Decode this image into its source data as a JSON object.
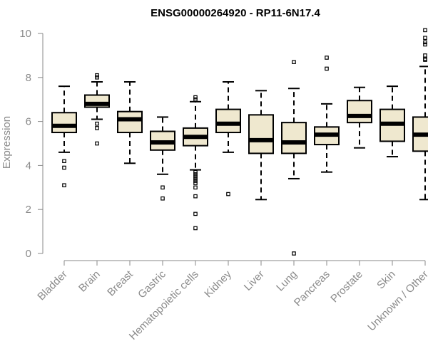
{
  "chart_data": {
    "type": "boxplot",
    "title": "ENSG00000264920 - RP11-6N17.4",
    "xlabel": "",
    "ylabel": "Expression",
    "ylim": [
      0,
      10
    ],
    "yticks": [
      0,
      2,
      4,
      6,
      8,
      10
    ],
    "box_fill": "#efe8cf",
    "axis_color": "#8a8a8a",
    "categories": [
      "Bladder",
      "Brain",
      "Breast",
      "Gastric",
      "Hematopoietic cells",
      "Kidney",
      "Liver",
      "Lung",
      "Pancreas",
      "Prostate",
      "Skin",
      "Unknown / Other"
    ],
    "boxes": [
      {
        "name": "Bladder",
        "whisker_low": 4.6,
        "q1": 5.5,
        "median": 5.8,
        "q3": 6.4,
        "whisker_high": 7.6,
        "outliers": [
          4.2,
          3.9,
          3.1
        ]
      },
      {
        "name": "Brain",
        "whisker_low": 6.1,
        "q1": 6.65,
        "median": 6.8,
        "q3": 7.2,
        "whisker_high": 7.8,
        "outliers": [
          8.1,
          8.0,
          5.9,
          5.7,
          5.0
        ]
      },
      {
        "name": "Breast",
        "whisker_low": 4.1,
        "q1": 5.5,
        "median": 6.1,
        "q3": 6.45,
        "whisker_high": 7.8,
        "outliers": []
      },
      {
        "name": "Gastric",
        "whisker_low": 3.6,
        "q1": 4.7,
        "median": 5.05,
        "q3": 5.55,
        "whisker_high": 6.2,
        "outliers": [
          3.0,
          2.5
        ]
      },
      {
        "name": "Hematopoietic cells",
        "whisker_low": 3.8,
        "q1": 4.9,
        "median": 5.3,
        "q3": 5.7,
        "whisker_high": 6.9,
        "outliers": [
          7.1,
          7.0,
          3.7,
          3.6,
          3.5,
          3.4,
          3.3,
          3.2,
          3.0,
          2.6,
          1.8,
          1.15
        ]
      },
      {
        "name": "Kidney",
        "whisker_low": 4.6,
        "q1": 5.5,
        "median": 5.9,
        "q3": 6.55,
        "whisker_high": 7.8,
        "outliers": [
          2.7
        ]
      },
      {
        "name": "Liver",
        "whisker_low": 2.45,
        "q1": 4.55,
        "median": 5.15,
        "q3": 6.3,
        "whisker_high": 7.4,
        "outliers": []
      },
      {
        "name": "Lung",
        "whisker_low": 3.4,
        "q1": 4.55,
        "median": 5.05,
        "q3": 5.95,
        "whisker_high": 7.5,
        "outliers": [
          8.7,
          0.0
        ]
      },
      {
        "name": "Pancreas",
        "whisker_low": 3.7,
        "q1": 4.95,
        "median": 5.4,
        "q3": 5.75,
        "whisker_high": 6.8,
        "outliers": [
          8.9,
          8.4
        ]
      },
      {
        "name": "Prostate",
        "whisker_low": 4.8,
        "q1": 5.95,
        "median": 6.25,
        "q3": 6.95,
        "whisker_high": 7.55,
        "outliers": []
      },
      {
        "name": "Skin",
        "whisker_low": 4.4,
        "q1": 5.1,
        "median": 5.9,
        "q3": 6.55,
        "whisker_high": 7.6,
        "outliers": []
      },
      {
        "name": "Unknown / Other",
        "whisker_low": 2.45,
        "q1": 4.65,
        "median": 5.4,
        "q3": 6.2,
        "whisker_high": 8.5,
        "outliers": [
          10.15,
          9.8,
          9.6,
          9.5,
          9.0,
          8.85,
          8.8
        ]
      }
    ]
  }
}
